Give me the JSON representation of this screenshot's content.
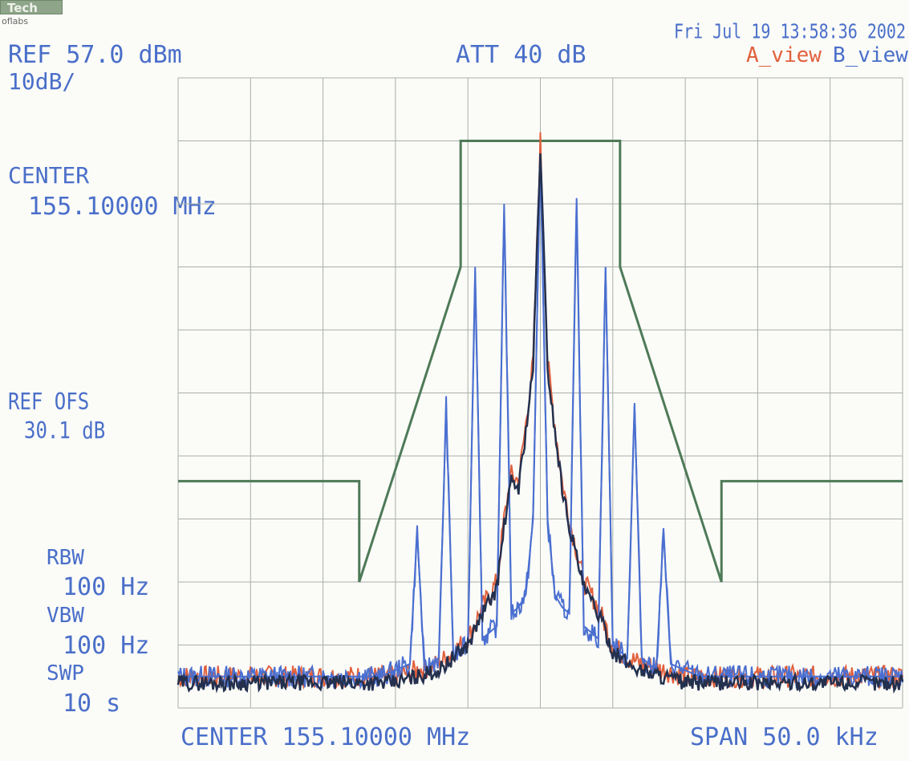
{
  "header": {
    "logo_text": "Tech",
    "logo_sub": "oflabs",
    "datetime": "Fri Jul 19 13:58:36 2002",
    "ref_level": "REF 57.0 dBm",
    "scale": "10dB/",
    "attenuation": "ATT 40 dB",
    "trace_a_label": "A_view",
    "trace_b_label": "B_view"
  },
  "left_panel": {
    "center_label": "CENTER",
    "center_value": "155.10000 MHz",
    "ref_ofs_label": "REF OFS",
    "ref_ofs_value": "30.1 dB",
    "rbw_label": "RBW",
    "rbw_value": "100 Hz",
    "vbw_label": "VBW",
    "vbw_value": "100 Hz",
    "swp_label": "SWP",
    "swp_value": "10 s"
  },
  "footer": {
    "center": "CENTER 155.10000 MHz",
    "span": "SPAN 50.0 kHz"
  },
  "colors": {
    "grid": "#a9b0a9",
    "mask": "#4e7a57",
    "trace_a": "#e0603c",
    "trace_b": "#4a6fd0",
    "trace_dark": "#23304e",
    "text": "#4a6fc9"
  },
  "chart_data": {
    "type": "line",
    "x_unit": "kHz offset from center",
    "y_unit": "dB below reference",
    "xlim": [
      -25,
      25
    ],
    "ylim": [
      -100,
      0
    ],
    "grid": true,
    "mask": {
      "x": [
        -25,
        -12.5,
        -12.5,
        -5.5,
        -5.5,
        5.5,
        5.5,
        12.5,
        12.5,
        25
      ],
      "y": [
        -64,
        -64,
        -80,
        -30,
        -10,
        -10,
        -30,
        -80,
        -64,
        -64
      ]
    },
    "series": [
      {
        "name": "A_view",
        "color": "#e0603c",
        "x": [
          -25,
          -10,
          -8.5,
          -7,
          -6,
          -5,
          -4,
          -3,
          -2.5,
          -2,
          -1.5,
          -1,
          -0.5,
          0,
          0.5,
          1,
          1.5,
          2,
          2.5,
          3,
          4,
          5,
          6,
          7,
          8.5,
          10,
          25
        ],
        "y": [
          -95,
          -95,
          -94,
          -93,
          -91,
          -89,
          -84,
          -80,
          -70,
          -63,
          -64,
          -55,
          -45,
          -10,
          -45,
          -55,
          -64,
          -70,
          -75,
          -80,
          -84,
          -90,
          -92,
          -93,
          -94,
          -95,
          -95
        ]
      },
      {
        "name": "B_view",
        "color": "#4a6fd0",
        "x": [
          -25,
          -11,
          -10,
          -9,
          -8.5,
          -8,
          -7.5,
          -7,
          -6.5,
          -6,
          -5.5,
          -5,
          -4.5,
          -4,
          -3.5,
          -3,
          -2.5,
          -2,
          -1.5,
          -1,
          -0.5,
          0,
          0.5,
          1,
          1.5,
          2,
          2.5,
          3,
          3.5,
          4,
          4.5,
          5,
          5.5,
          6,
          6.5,
          7,
          7.5,
          8,
          8.5,
          9,
          10,
          11,
          25
        ],
        "y": [
          -95,
          -95,
          -94,
          -93,
          -72,
          -94,
          -93,
          -92,
          -52,
          -92,
          -91,
          -90,
          -30,
          -89,
          -88,
          -87,
          -20,
          -85,
          -84,
          -82,
          -70,
          -12,
          -70,
          -82,
          -84,
          -85,
          -20,
          -87,
          -88,
          -89,
          -30,
          -90,
          -91,
          -92,
          -52,
          -92,
          -93,
          -94,
          -72,
          -93,
          -94,
          -95,
          -95
        ]
      }
    ]
  }
}
